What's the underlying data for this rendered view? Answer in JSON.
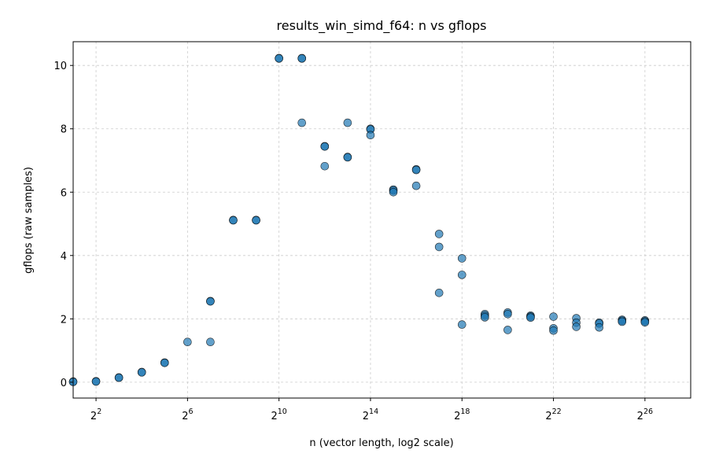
{
  "chart_data": {
    "type": "scatter",
    "title": "results_win_simd_f64: n vs gflops",
    "xlabel": "n (vector length, log2 scale)",
    "ylabel": "gflops (raw samples)",
    "x_scale": "log2",
    "xlim": [
      2,
      268435456
    ],
    "ylim": [
      -0.5,
      10.75
    ],
    "x_ticks": [
      {
        "base": "2",
        "exp": "2",
        "value": 4
      },
      {
        "base": "2",
        "exp": "6",
        "value": 64
      },
      {
        "base": "2",
        "exp": "10",
        "value": 1024
      },
      {
        "base": "2",
        "exp": "14",
        "value": 16384
      },
      {
        "base": "2",
        "exp": "18",
        "value": 262144
      },
      {
        "base": "2",
        "exp": "22",
        "value": 4194304
      },
      {
        "base": "2",
        "exp": "26",
        "value": 67108864
      }
    ],
    "y_ticks": [
      "0",
      "2",
      "4",
      "6",
      "8",
      "10"
    ],
    "grid": true,
    "color": "#1f77b4",
    "points": [
      {
        "x": 2,
        "y": 0.02
      },
      {
        "x": 2,
        "y": 0.01
      },
      {
        "x": 4,
        "y": 0.03
      },
      {
        "x": 4,
        "y": 0.02
      },
      {
        "x": 8,
        "y": 0.15
      },
      {
        "x": 8,
        "y": 0.14
      },
      {
        "x": 16,
        "y": 0.32
      },
      {
        "x": 16,
        "y": 0.31
      },
      {
        "x": 32,
        "y": 0.62
      },
      {
        "x": 32,
        "y": 0.61
      },
      {
        "x": 64,
        "y": 1.27
      },
      {
        "x": 128,
        "y": 2.56
      },
      {
        "x": 128,
        "y": 2.55
      },
      {
        "x": 128,
        "y": 1.27
      },
      {
        "x": 256,
        "y": 5.12
      },
      {
        "x": 256,
        "y": 5.11
      },
      {
        "x": 512,
        "y": 5.12
      },
      {
        "x": 512,
        "y": 5.11
      },
      {
        "x": 1024,
        "y": 10.23
      },
      {
        "x": 1024,
        "y": 10.22
      },
      {
        "x": 2048,
        "y": 10.23
      },
      {
        "x": 2048,
        "y": 10.22
      },
      {
        "x": 2048,
        "y": 8.19
      },
      {
        "x": 4096,
        "y": 7.45
      },
      {
        "x": 4096,
        "y": 7.44
      },
      {
        "x": 4096,
        "y": 6.82
      },
      {
        "x": 8192,
        "y": 8.19
      },
      {
        "x": 8192,
        "y": 7.11
      },
      {
        "x": 8192,
        "y": 7.1
      },
      {
        "x": 16384,
        "y": 8.0
      },
      {
        "x": 16384,
        "y": 7.98
      },
      {
        "x": 16384,
        "y": 7.8
      },
      {
        "x": 32768,
        "y": 6.08
      },
      {
        "x": 32768,
        "y": 6.05
      },
      {
        "x": 32768,
        "y": 6.0
      },
      {
        "x": 65536,
        "y": 6.72
      },
      {
        "x": 65536,
        "y": 6.7
      },
      {
        "x": 65536,
        "y": 6.2
      },
      {
        "x": 131072,
        "y": 4.68
      },
      {
        "x": 131072,
        "y": 4.27
      },
      {
        "x": 131072,
        "y": 2.82
      },
      {
        "x": 262144,
        "y": 3.91
      },
      {
        "x": 262144,
        "y": 3.39
      },
      {
        "x": 262144,
        "y": 1.82
      },
      {
        "x": 524288,
        "y": 2.15
      },
      {
        "x": 524288,
        "y": 2.1
      },
      {
        "x": 524288,
        "y": 2.05
      },
      {
        "x": 1048576,
        "y": 2.2
      },
      {
        "x": 1048576,
        "y": 2.15
      },
      {
        "x": 1048576,
        "y": 1.65
      },
      {
        "x": 2097152,
        "y": 2.1
      },
      {
        "x": 2097152,
        "y": 2.07
      },
      {
        "x": 2097152,
        "y": 2.04
      },
      {
        "x": 4194304,
        "y": 2.07
      },
      {
        "x": 4194304,
        "y": 1.7
      },
      {
        "x": 4194304,
        "y": 1.63
      },
      {
        "x": 8388608,
        "y": 2.02
      },
      {
        "x": 8388608,
        "y": 1.88
      },
      {
        "x": 8388608,
        "y": 1.75
      },
      {
        "x": 16777216,
        "y": 1.88
      },
      {
        "x": 16777216,
        "y": 1.85
      },
      {
        "x": 16777216,
        "y": 1.73
      },
      {
        "x": 33554432,
        "y": 1.97
      },
      {
        "x": 33554432,
        "y": 1.94
      },
      {
        "x": 33554432,
        "y": 1.91
      },
      {
        "x": 67108864,
        "y": 1.95
      },
      {
        "x": 67108864,
        "y": 1.92
      },
      {
        "x": 67108864,
        "y": 1.89
      }
    ]
  }
}
